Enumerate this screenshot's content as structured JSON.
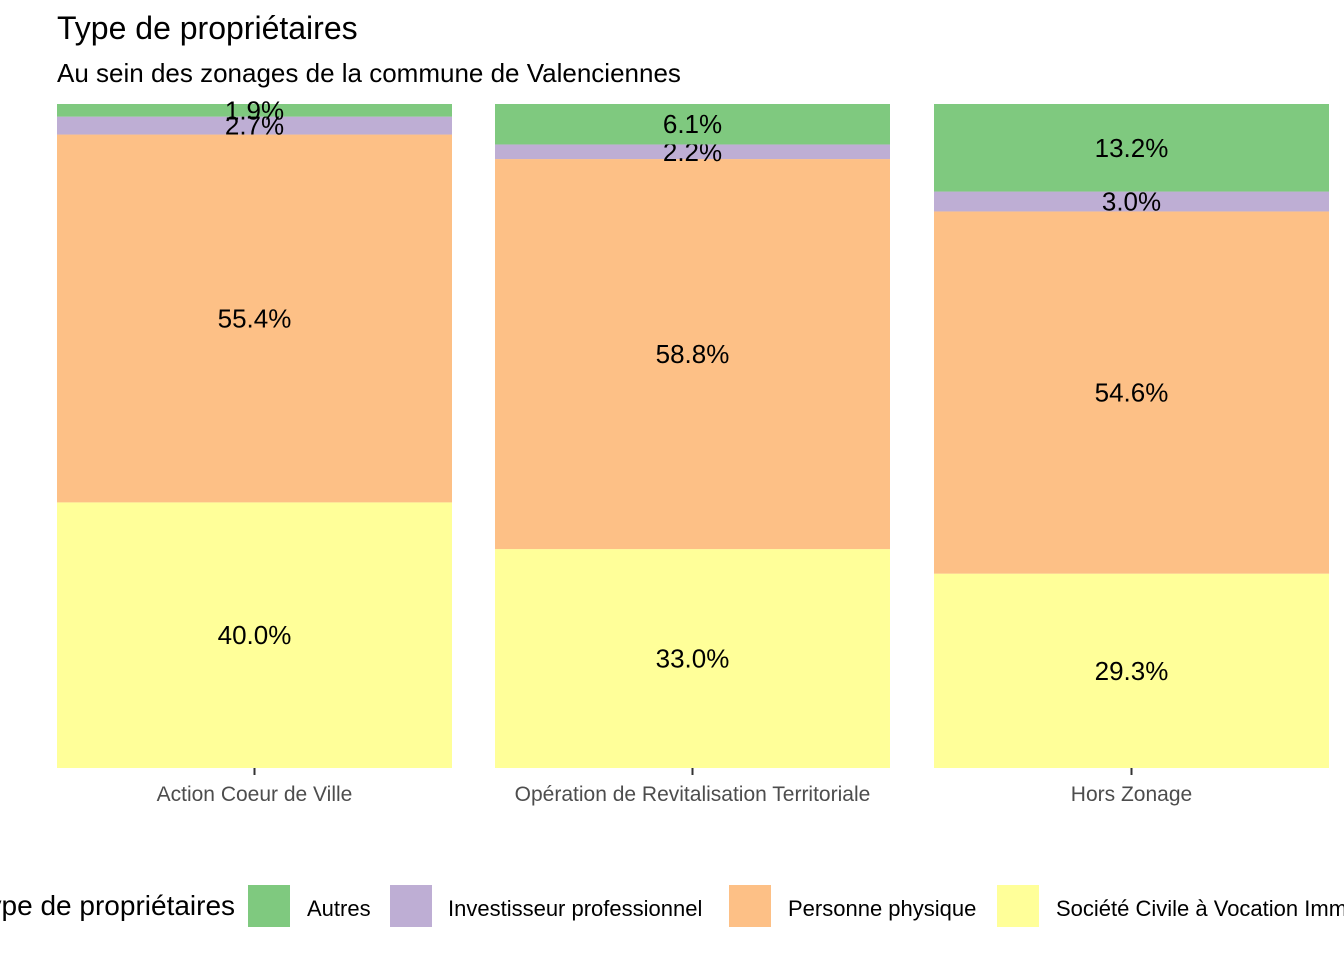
{
  "title": "Type de propriétaires",
  "subtitle": "Au sein des zonages de la commune de Valenciennes",
  "chart_data": {
    "type": "bar",
    "stacked": true,
    "percent_stacked": true,
    "categories": [
      "Action Coeur de Ville",
      "Opération de Revitalisation Territoriale",
      "Hors Zonage"
    ],
    "series": [
      {
        "name": "Société Civile à Vocation Imm",
        "color": "#FFFF99",
        "values": [
          40.0,
          33.0,
          29.3
        ],
        "labels": [
          "40.0%",
          "33.0%",
          "29.3%"
        ]
      },
      {
        "name": "Personne physique",
        "color": "#FDC086",
        "values": [
          55.4,
          58.8,
          54.6
        ],
        "labels": [
          "55.4%",
          "58.8%",
          "54.6%"
        ]
      },
      {
        "name": "Investisseur professionnel",
        "color": "#BEAED4",
        "values": [
          2.7,
          2.2,
          3.0
        ],
        "labels": [
          "2.7%",
          "2.2%",
          "3.0%"
        ]
      },
      {
        "name": "Autres",
        "color": "#7FC97F",
        "values": [
          1.9,
          6.1,
          13.2
        ],
        "labels": [
          "1.9%",
          "6.1%",
          "13.2%"
        ]
      }
    ],
    "ylim": [
      0,
      100
    ],
    "grid": false,
    "legend_position": "bottom"
  },
  "legend": {
    "title": "Type de propriétaires",
    "items": [
      {
        "label": "Autres",
        "color": "#7FC97F"
      },
      {
        "label": "Investisseur professionnel",
        "color": "#BEAED4"
      },
      {
        "label": "Personne physique",
        "color": "#FDC086"
      },
      {
        "label": "Société Civile à Vocation Imm",
        "color": "#FFFF99"
      }
    ]
  }
}
